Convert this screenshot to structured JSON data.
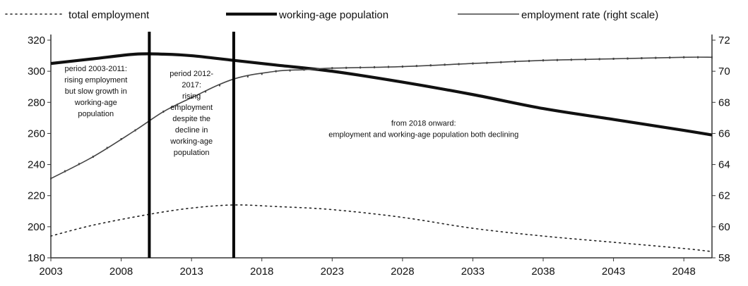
{
  "chart_data": {
    "type": "line",
    "x": [
      2003,
      2008,
      2013,
      2018,
      2023,
      2028,
      2033,
      2038,
      2043,
      2048
    ],
    "x_ticks": [
      "2003",
      "2008",
      "2013",
      "2018",
      "2023",
      "2028",
      "2033",
      "2038",
      "2043",
      "2048"
    ],
    "y_left_ticks": [
      "180",
      "200",
      "220",
      "240",
      "260",
      "280",
      "300",
      "320"
    ],
    "y_right_ticks": [
      "58",
      "60",
      "62",
      "64",
      "66",
      "68",
      "70",
      "72"
    ],
    "ylim_left": [
      180,
      320
    ],
    "ylim_right": [
      58,
      72
    ],
    "xlim": [
      2003,
      2050
    ],
    "grid": false,
    "legend_position": "top",
    "legend": [
      "total employment",
      "working-age population",
      "employment rate (right scale)"
    ],
    "series": [
      {
        "name": "total employment",
        "axis": "left",
        "style": "dotted",
        "color": "#222222",
        "x": [
          2003,
          2006,
          2010,
          2013,
          2016,
          2019,
          2023,
          2028,
          2033,
          2038,
          2043,
          2048,
          2050
        ],
        "values": [
          194,
          201,
          208,
          212,
          214,
          213,
          211,
          206,
          199,
          194,
          190,
          186,
          184
        ]
      },
      {
        "name": "working-age population",
        "axis": "left",
        "style": "thick",
        "color": "#111111",
        "x": [
          2003,
          2006,
          2009,
          2011,
          2013,
          2016,
          2019,
          2023,
          2028,
          2033,
          2038,
          2043,
          2048,
          2050
        ],
        "values": [
          305,
          308,
          311,
          311,
          310,
          307,
          304,
          300,
          293,
          285,
          276,
          269,
          262,
          259
        ]
      },
      {
        "name": "employment rate (right scale)",
        "axis": "right",
        "style": "thin",
        "color": "#444444",
        "x": [
          2003,
          2006,
          2009,
          2011,
          2013,
          2016,
          2019,
          2021,
          2023,
          2028,
          2033,
          2038,
          2043,
          2048,
          2050
        ],
        "values": [
          63.1,
          64.5,
          66.2,
          67.4,
          68.3,
          69.5,
          70.0,
          70.1,
          70.2,
          70.3,
          70.5,
          70.7,
          70.8,
          70.9,
          70.9
        ]
      }
    ],
    "vertical_lines": [
      2010,
      2016
    ],
    "annotations": [
      {
        "id": "period-1",
        "x": 2006.2,
        "y": 300,
        "lines": [
          "period 2003-2011:",
          "rising employment",
          "but slow growth in",
          "working-age",
          "population"
        ]
      },
      {
        "id": "period-2",
        "x": 2013.0,
        "y": 297,
        "lines": [
          "period 2012-",
          "2017:",
          "rising",
          "employment",
          "despite the",
          "decline in",
          "working-age",
          "population"
        ]
      },
      {
        "id": "period-3",
        "x": 2029.5,
        "y": 265,
        "lines": [
          "from 2018 onward:",
          "employment and working-age population both declining"
        ]
      }
    ],
    "title": "",
    "xlabel": "",
    "ylabel": ""
  }
}
